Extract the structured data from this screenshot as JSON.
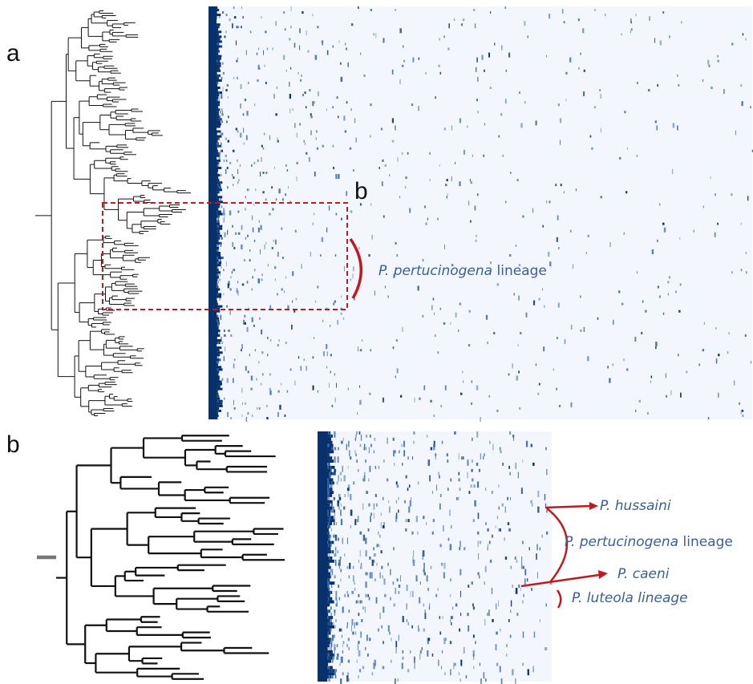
{
  "panel_labels": {
    "a": "a",
    "b_inset": "b",
    "b": "b"
  },
  "annotations": {
    "a_lineage": {
      "italic": "P. pertucinogena",
      "rest": " lineage"
    },
    "b_hussaini": "P. hussaini",
    "b_lineage": {
      "italic": "P. pertucinogena",
      "rest": " lineage"
    },
    "b_caeni": "P. caeni",
    "b_luteola": "P. luteola lineage"
  },
  "colors": {
    "heatmap_dark": "#08306b",
    "heatmap_mid": "#3e6fb0",
    "heatmap_light": "#f3f7fd",
    "highlight_red": "#c0191f",
    "label_blue": "#3a5e9a",
    "tree": "#111111"
  }
}
